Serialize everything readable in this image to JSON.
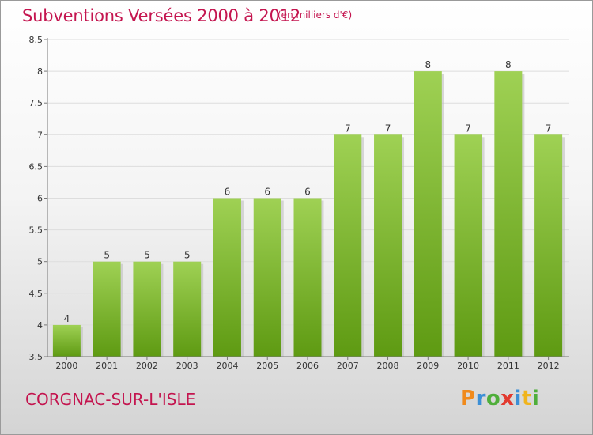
{
  "header": {
    "title": "Subventions Versées 2000 à 2012",
    "unit": "(en milliers d'€)"
  },
  "footer": {
    "place": "CORGNAC-SUR-L'ISLE",
    "logo": "Proxiti"
  },
  "colors": {
    "title": "#c4154f",
    "bar_top": "#9fd154",
    "bar_bottom": "#5e9a12"
  },
  "chart_data": {
    "type": "bar",
    "title": "Subventions Versées 2000 à 2012",
    "subtitle": "(en milliers d'€)",
    "xlabel": "",
    "ylabel": "",
    "categories": [
      "2000",
      "2001",
      "2002",
      "2003",
      "2004",
      "2005",
      "2006",
      "2007",
      "2008",
      "2009",
      "2010",
      "2011",
      "2012"
    ],
    "values": [
      4,
      5,
      5,
      5,
      6,
      6,
      6,
      7,
      7,
      8,
      7,
      8,
      7
    ],
    "ylim": [
      3.5,
      8.5
    ],
    "yticks": [
      "3.5",
      "4",
      "4.5",
      "5",
      "5.5",
      "6",
      "6.5",
      "7",
      "7.5",
      "8",
      "8.5"
    ],
    "grid": true,
    "legend": "none"
  }
}
